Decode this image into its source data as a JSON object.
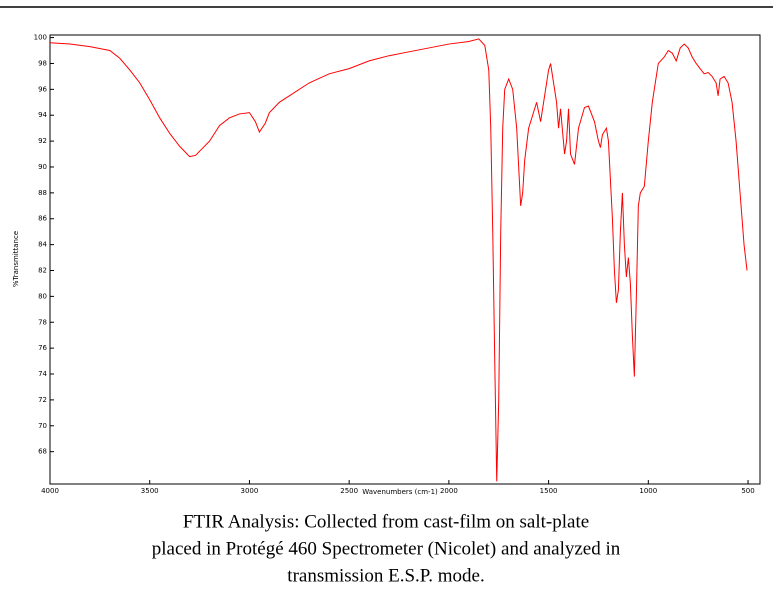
{
  "chart_data": {
    "type": "line",
    "xlabel": "Wavenumbers (cm-1)",
    "ylabel": "%Transmittance",
    "xlim": [
      4000,
      440
    ],
    "ylim": [
      65.5,
      100.2
    ],
    "xticks": [
      4000,
      3500,
      3000,
      2500,
      2000,
      1500,
      1000,
      500
    ],
    "yticks": [
      68,
      70,
      72,
      74,
      76,
      78,
      80,
      82,
      84,
      86,
      88,
      90,
      92,
      94,
      96,
      98,
      100
    ],
    "x": [
      4000,
      3900,
      3800,
      3700,
      3650,
      3600,
      3550,
      3500,
      3450,
      3400,
      3350,
      3300,
      3270,
      3200,
      3150,
      3100,
      3050,
      3000,
      2970,
      2950,
      2920,
      2900,
      2850,
      2800,
      2700,
      2600,
      2500,
      2400,
      2300,
      2200,
      2100,
      2000,
      1900,
      1850,
      1820,
      1800,
      1790,
      1780,
      1770,
      1760,
      1750,
      1740,
      1730,
      1720,
      1700,
      1680,
      1660,
      1650,
      1640,
      1630,
      1620,
      1600,
      1580,
      1560,
      1540,
      1520,
      1500,
      1490,
      1480,
      1460,
      1450,
      1440,
      1420,
      1410,
      1400,
      1390,
      1370,
      1350,
      1320,
      1300,
      1270,
      1250,
      1240,
      1230,
      1210,
      1200,
      1190,
      1180,
      1170,
      1160,
      1150,
      1140,
      1130,
      1120,
      1110,
      1100,
      1090,
      1080,
      1070,
      1060,
      1050,
      1040,
      1020,
      1000,
      980,
      950,
      920,
      900,
      880,
      860,
      840,
      820,
      800,
      780,
      760,
      740,
      720,
      700,
      680,
      660,
      650,
      640,
      620,
      600,
      580,
      560,
      540,
      520,
      505
    ],
    "series": [
      {
        "color": "#ff0000",
        "values": [
          99.6,
          99.5,
          99.3,
          99.0,
          98.4,
          97.5,
          96.5,
          95.2,
          93.8,
          92.6,
          91.6,
          90.8,
          90.9,
          92.0,
          93.2,
          93.8,
          94.1,
          94.2,
          93.5,
          92.7,
          93.4,
          94.2,
          95.0,
          95.5,
          96.5,
          97.2,
          97.6,
          98.2,
          98.6,
          98.9,
          99.2,
          99.5,
          99.7,
          99.9,
          99.4,
          97.5,
          93,
          85,
          75,
          65.7,
          72,
          85,
          93,
          96,
          96.8,
          96,
          93,
          90,
          87,
          88,
          90.5,
          93,
          94,
          95,
          93.5,
          95.5,
          97.5,
          98.0,
          97,
          95,
          93,
          94.5,
          91.0,
          92,
          94.5,
          91,
          90.2,
          93,
          94.6,
          94.7,
          93.5,
          92,
          91.5,
          92.5,
          93,
          92,
          89,
          86,
          82,
          79.5,
          80.5,
          85,
          88,
          84,
          81.5,
          83,
          81,
          77,
          73.8,
          80,
          87,
          88,
          88.5,
          92,
          95,
          98,
          98.5,
          99,
          98.8,
          98.2,
          99.2,
          99.5,
          99.2,
          98.5,
          98,
          97.6,
          97.2,
          97.3,
          97.0,
          96.5,
          95.5,
          96.8,
          97,
          96.5,
          95,
          92,
          88,
          84,
          82.0
        ]
      }
    ]
  },
  "caption": [
    "FTIR Analysis: Collected from cast-film on salt-plate",
    "placed in Protégé 460 Spectrometer (Nicolet) and analyzed in",
    "transmission E.S.P. mode."
  ]
}
